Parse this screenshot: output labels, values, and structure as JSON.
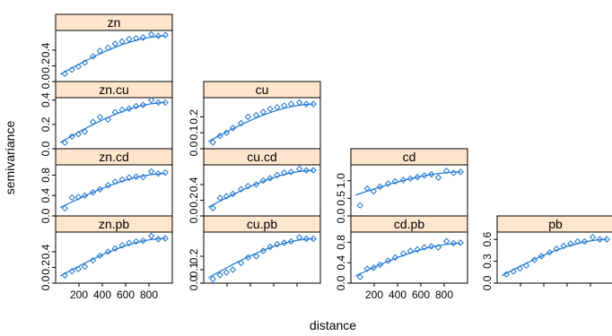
{
  "chart_data": {
    "type": "scatter",
    "layout": "lattice-lower-triangular",
    "xlabel": "distance",
    "ylabel": "semivariance",
    "xlim": [
      0,
      1000
    ],
    "x_ticks": [
      200,
      400,
      600,
      800
    ],
    "x_tick_labels": [
      "200",
      "400",
      "600",
      "800"
    ],
    "point_color": "#1f77d0",
    "line_color": "#1f77d0",
    "strip_color": "#ffe5cc",
    "panels": [
      {
        "name": "zn",
        "row": 0,
        "col": 0,
        "ylim": [
          0,
          0.65
        ],
        "y_ticks": [
          0.0,
          0.2,
          0.4
        ],
        "y_tick_labels": [
          "0.0",
          "0.2",
          "0.4"
        ],
        "x": [
          79,
          140,
          195,
          250,
          320,
          380,
          450,
          510,
          570,
          630,
          690,
          750,
          820,
          880,
          940
        ],
        "y": [
          0.1,
          0.15,
          0.19,
          0.24,
          0.32,
          0.39,
          0.43,
          0.48,
          0.51,
          0.54,
          0.55,
          0.56,
          0.6,
          0.58,
          0.59
        ],
        "model": {
          "nugget": 0.06,
          "sill": 0.58,
          "range": 960
        }
      },
      {
        "name": "zn.cu",
        "row": 1,
        "col": 0,
        "ylim": [
          0,
          0.42
        ],
        "y_ticks": [
          0.0,
          0.2,
          0.4
        ],
        "y_tick_labels": [
          "0.0",
          "0.2",
          "0.4"
        ],
        "x": [
          79,
          140,
          195,
          250,
          320,
          380,
          450,
          510,
          570,
          630,
          690,
          750,
          820,
          880,
          940
        ],
        "y": [
          0.05,
          0.1,
          0.12,
          0.14,
          0.22,
          0.26,
          0.24,
          0.3,
          0.32,
          0.33,
          0.35,
          0.36,
          0.4,
          0.38,
          0.38
        ],
        "model": {
          "nugget": 0.03,
          "sill": 0.38,
          "range": 960
        }
      },
      {
        "name": "cu",
        "row": 1,
        "col": 1,
        "ylim": [
          0,
          0.32
        ],
        "y_ticks": [
          0.0,
          0.1,
          0.2
        ],
        "y_tick_labels": [
          "0.0",
          "0.1",
          "0.2"
        ],
        "x": [
          79,
          140,
          195,
          250,
          320,
          380,
          450,
          510,
          570,
          630,
          690,
          750,
          820,
          880,
          940
        ],
        "y": [
          0.04,
          0.08,
          0.1,
          0.13,
          0.16,
          0.2,
          0.21,
          0.23,
          0.25,
          0.26,
          0.27,
          0.28,
          0.29,
          0.28,
          0.28
        ],
        "model": {
          "nugget": 0.03,
          "sill": 0.28,
          "range": 960
        }
      },
      {
        "name": "zn.cd",
        "row": 2,
        "col": 0,
        "ylim": [
          0,
          1.0
        ],
        "y_ticks": [
          0.0,
          0.4,
          0.8
        ],
        "y_tick_labels": [
          "0.0",
          "0.4",
          "0.8"
        ],
        "x": [
          79,
          140,
          195,
          250,
          320,
          380,
          450,
          510,
          570,
          630,
          690,
          750,
          820,
          880,
          940
        ],
        "y": [
          0.15,
          0.36,
          0.37,
          0.4,
          0.46,
          0.52,
          0.6,
          0.67,
          0.71,
          0.75,
          0.77,
          0.76,
          0.87,
          0.83,
          0.85
        ],
        "model": {
          "nugget": 0.12,
          "sill": 0.83,
          "range": 960
        }
      },
      {
        "name": "cu.cd",
        "row": 2,
        "col": 1,
        "ylim": [
          0,
          0.65
        ],
        "y_ticks": [
          0.0,
          0.2,
          0.4
        ],
        "y_tick_labels": [
          "0.0",
          "0.2",
          "0.4"
        ],
        "x": [
          79,
          140,
          195,
          250,
          320,
          380,
          450,
          510,
          570,
          630,
          690,
          750,
          820,
          880,
          940
        ],
        "y": [
          0.1,
          0.23,
          0.25,
          0.28,
          0.34,
          0.38,
          0.4,
          0.45,
          0.48,
          0.52,
          0.55,
          0.56,
          0.6,
          0.58,
          0.58
        ],
        "model": {
          "nugget": 0.08,
          "sill": 0.58,
          "range": 960
        }
      },
      {
        "name": "cd",
        "row": 2,
        "col": 2,
        "ylim": [
          0,
          1.45
        ],
        "y_ticks": [
          0.0,
          0.5,
          1.0
        ],
        "y_tick_labels": [
          "0.0",
          "0.5",
          "1.0"
        ],
        "x": [
          79,
          140,
          195,
          250,
          320,
          380,
          450,
          510,
          570,
          630,
          690,
          750,
          820,
          880,
          940
        ],
        "y": [
          0.3,
          0.78,
          0.7,
          0.83,
          0.92,
          0.98,
          1.02,
          1.06,
          1.1,
          1.15,
          1.18,
          1.09,
          1.28,
          1.22,
          1.25
        ],
        "model": {
          "nugget": 0.55,
          "sill": 1.25,
          "range": 960
        }
      },
      {
        "name": "zn.pb",
        "row": 3,
        "col": 0,
        "ylim": [
          0,
          0.65
        ],
        "y_ticks": [
          0.0,
          0.2,
          0.4
        ],
        "y_tick_labels": [
          "0.0",
          "0.2",
          "0.4"
        ],
        "x": [
          79,
          140,
          195,
          250,
          320,
          380,
          450,
          510,
          570,
          630,
          690,
          750,
          820,
          880,
          940
        ],
        "y": [
          0.1,
          0.15,
          0.18,
          0.21,
          0.29,
          0.35,
          0.4,
          0.44,
          0.48,
          0.51,
          0.53,
          0.54,
          0.6,
          0.56,
          0.57
        ],
        "model": {
          "nugget": 0.06,
          "sill": 0.57,
          "range": 960
        }
      },
      {
        "name": "cu.pb",
        "row": 3,
        "col": 1,
        "ylim": [
          0,
          0.38
        ],
        "y_ticks": [
          0.0,
          0.1,
          0.2
        ],
        "y_tick_labels": [
          "0.0",
          "0.1",
          "0.2"
        ],
        "x": [
          79,
          140,
          195,
          250,
          320,
          380,
          450,
          510,
          570,
          630,
          690,
          750,
          820,
          880,
          940
        ],
        "y": [
          0.03,
          0.06,
          0.08,
          0.1,
          0.15,
          0.19,
          0.2,
          0.24,
          0.27,
          0.29,
          0.3,
          0.31,
          0.34,
          0.33,
          0.33
        ],
        "model": {
          "nugget": 0.02,
          "sill": 0.33,
          "range": 960
        }
      },
      {
        "name": "cd.pb",
        "row": 3,
        "col": 2,
        "ylim": [
          0,
          1.0
        ],
        "y_ticks": [
          0.0,
          0.4,
          0.8
        ],
        "y_tick_labels": [
          "0.0",
          "0.4",
          "0.8"
        ],
        "x": [
          79,
          140,
          195,
          250,
          320,
          380,
          450,
          510,
          570,
          630,
          690,
          750,
          820,
          880,
          940
        ],
        "y": [
          0.12,
          0.28,
          0.3,
          0.36,
          0.44,
          0.5,
          0.58,
          0.63,
          0.66,
          0.7,
          0.72,
          0.7,
          0.82,
          0.78,
          0.79
        ],
        "model": {
          "nugget": 0.1,
          "sill": 0.78,
          "range": 960
        }
      },
      {
        "name": "pb",
        "row": 3,
        "col": 3,
        "ylim": [
          0,
          0.7
        ],
        "y_ticks": [
          0.0,
          0.3,
          0.6
        ],
        "y_tick_labels": [
          "0.0",
          "0.3",
          "0.6"
        ],
        "x": [
          79,
          140,
          195,
          250,
          320,
          380,
          450,
          510,
          570,
          630,
          690,
          750,
          820,
          880,
          940
        ],
        "y": [
          0.12,
          0.16,
          0.2,
          0.24,
          0.32,
          0.37,
          0.42,
          0.47,
          0.51,
          0.54,
          0.57,
          0.57,
          0.63,
          0.6,
          0.6
        ],
        "model": {
          "nugget": 0.07,
          "sill": 0.6,
          "range": 960
        }
      }
    ]
  }
}
